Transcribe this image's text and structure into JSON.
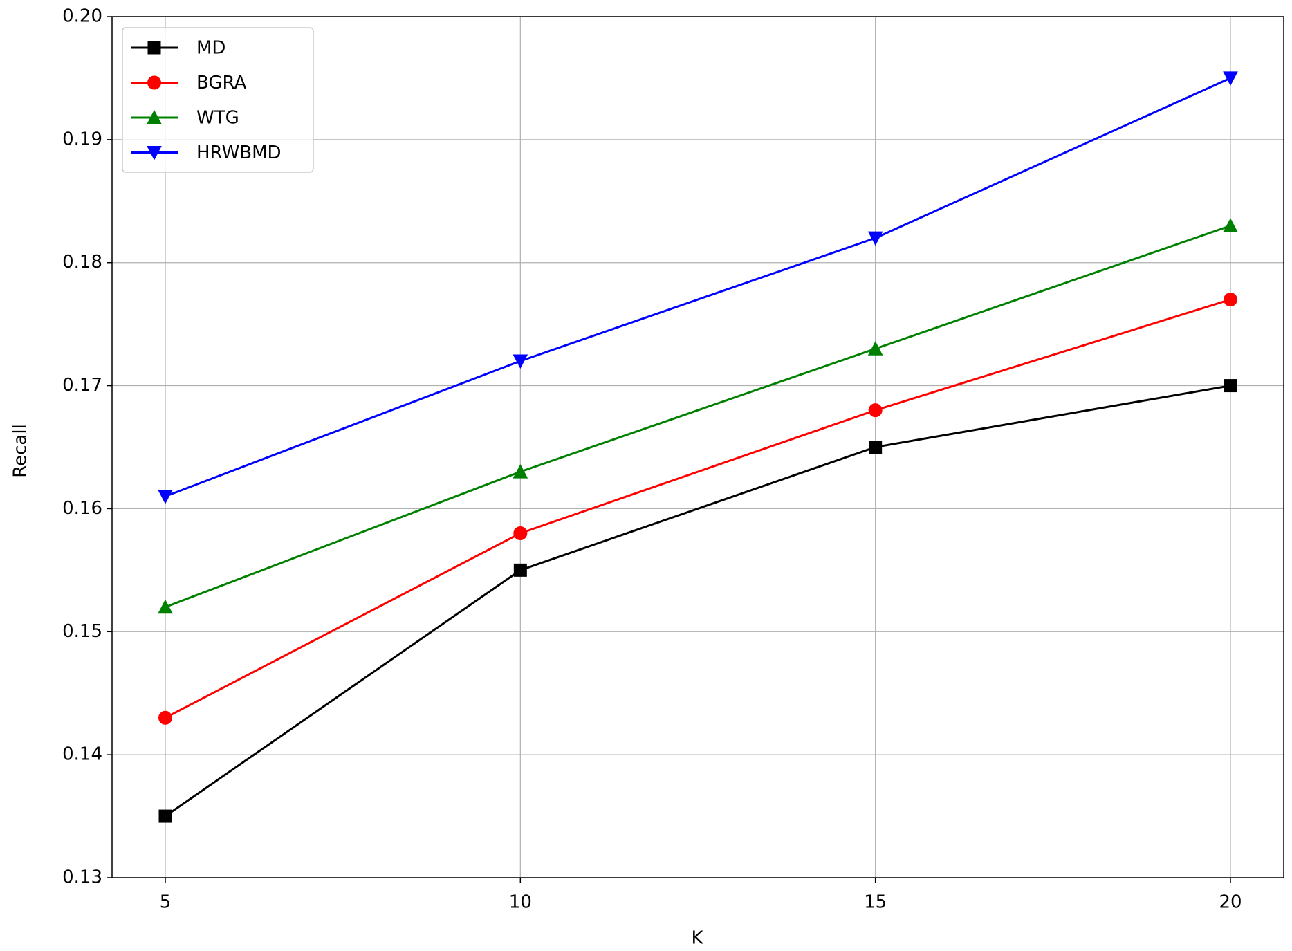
{
  "chart_data": {
    "type": "line",
    "xlabel": "K",
    "ylabel": "Recall",
    "x": [
      5,
      10,
      15,
      20
    ],
    "series": [
      {
        "name": "MD",
        "color": "#000000",
        "marker": "square",
        "values": [
          0.135,
          0.155,
          0.165,
          0.17
        ]
      },
      {
        "name": "BGRA",
        "color": "#ff0000",
        "marker": "circle",
        "values": [
          0.143,
          0.158,
          0.168,
          0.177
        ]
      },
      {
        "name": "WTG",
        "color": "#008000",
        "marker": "triangle-up",
        "values": [
          0.152,
          0.163,
          0.173,
          0.183
        ]
      },
      {
        "name": "HRWBMD",
        "color": "#0000ff",
        "marker": "triangle-down",
        "values": [
          0.161,
          0.172,
          0.182,
          0.195
        ]
      }
    ],
    "xlim": [
      4.25,
      20.75
    ],
    "xticks": [
      5,
      10,
      15,
      20
    ],
    "ylim": [
      0.13,
      0.2
    ],
    "yticks": [
      0.13,
      0.14,
      0.15,
      0.16,
      0.17,
      0.18,
      0.19,
      {
        "value": 0.2,
        "label": "0.20"
      }
    ],
    "grid": true,
    "legend": "upper left"
  }
}
